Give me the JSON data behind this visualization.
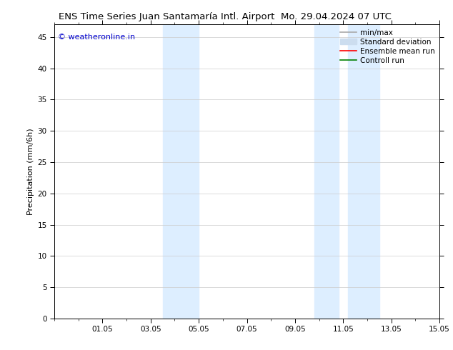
{
  "title_left": "ENS Time Series Juan Santamaría Intl. Airport",
  "title_right": "Mo. 29.04.2024 07 UTC",
  "ylabel": "Precipitation (mm/6h)",
  "ylim": [
    0,
    47
  ],
  "yticks": [
    0,
    5,
    10,
    15,
    20,
    25,
    30,
    35,
    40,
    45
  ],
  "xtick_labels": [
    "01.05",
    "03.05",
    "05.05",
    "07.05",
    "09.05",
    "11.05",
    "13.05",
    "15.05"
  ],
  "xtick_positions": [
    2,
    4,
    6,
    8,
    10,
    12,
    14,
    16
  ],
  "x_min": 0,
  "x_max": 16,
  "shaded_regions": [
    {
      "x_start": 4.5,
      "x_end": 6.0,
      "color": "#ddeeff"
    },
    {
      "x_start": 10.8,
      "x_end": 11.8,
      "color": "#ddeeff"
    },
    {
      "x_start": 12.2,
      "x_end": 13.5,
      "color": "#ddeeff"
    }
  ],
  "legend_items": [
    {
      "label": "min/max",
      "color": "#aaaaaa",
      "lw": 1.2,
      "type": "line"
    },
    {
      "label": "Standard deviation",
      "color": "#ccddef",
      "lw": 7,
      "type": "patch"
    },
    {
      "label": "Ensemble mean run",
      "color": "#ff0000",
      "lw": 1.2,
      "type": "line"
    },
    {
      "label": "Controll run",
      "color": "#008000",
      "lw": 1.2,
      "type": "line"
    }
  ],
  "watermark": "© weatheronline.in",
  "watermark_color": "#0000cc",
  "background_color": "#ffffff",
  "grid_color": "#cccccc",
  "font_size_title": 9.5,
  "font_size_axis": 8,
  "font_size_tick": 7.5,
  "font_size_watermark": 8,
  "font_size_legend": 7.5
}
